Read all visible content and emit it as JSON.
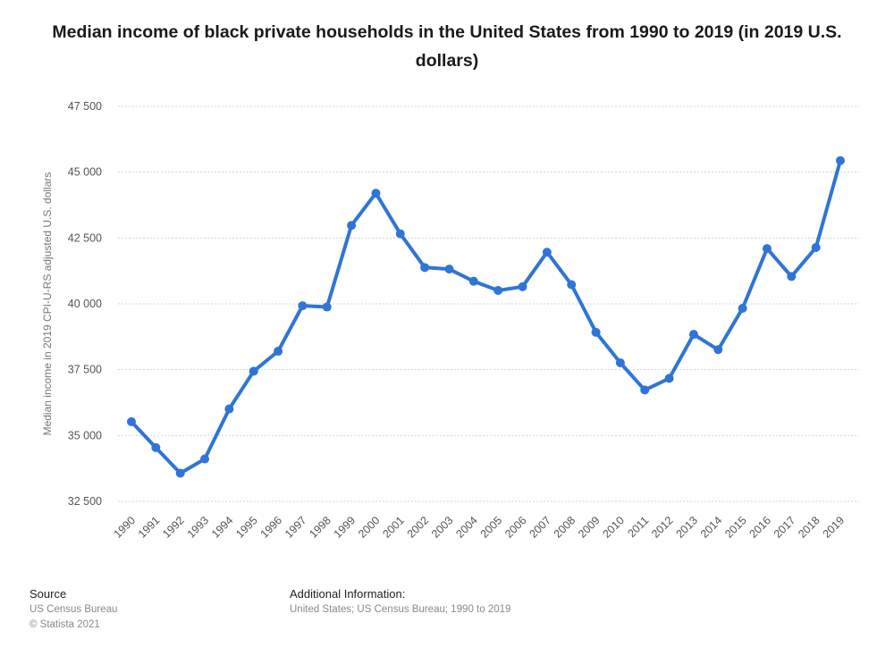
{
  "chart_data": {
    "type": "line",
    "title": "Median income of black private households in the United States from 1990 to 2019 (in 2019 U.S. dollars)",
    "xlabel": "",
    "ylabel": "Median income in 2019 CPI-U-RS adjusted U.S. dollars",
    "x": [
      "1990",
      "1991",
      "1992",
      "1993",
      "1994",
      "1995",
      "1996",
      "1997",
      "1998",
      "1999",
      "2000",
      "2001",
      "2002",
      "2003",
      "2004",
      "2005",
      "2006",
      "2007",
      "2008",
      "2009",
      "2010",
      "2011",
      "2012",
      "2013",
      "2014",
      "2015",
      "2016",
      "2017",
      "2018",
      "2019"
    ],
    "series": [
      {
        "values": [
          35525,
          34540,
          33570,
          34110,
          36010,
          37440,
          38200,
          39930,
          39880,
          42980,
          44200,
          42660,
          41380,
          41320,
          40860,
          40510,
          40650,
          41960,
          40730,
          38920,
          37760,
          36730,
          37170,
          38840,
          38260,
          39830,
          42100,
          41040,
          42140,
          45440
        ]
      }
    ],
    "ylim": [
      32500,
      47500
    ],
    "yticks": [
      32500,
      35000,
      37500,
      40000,
      42500,
      45000,
      47500
    ],
    "ytick_labels": [
      "32 500",
      "35 000",
      "37 500",
      "40 000",
      "42 500",
      "45 000",
      "47 500"
    ],
    "grid": true,
    "line_color": "#2f75d6"
  },
  "footer": {
    "source_label": "Source",
    "source_lines": [
      "US Census Bureau",
      "© Statista 2021"
    ],
    "info_label": "Additional Information:",
    "info_text": "United States; US Census Bureau; 1990 to 2019"
  }
}
